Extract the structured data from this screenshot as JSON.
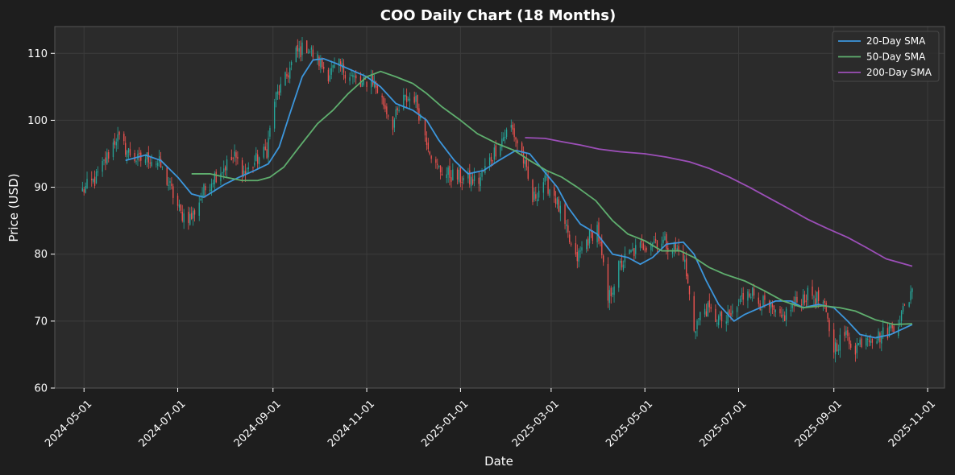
{
  "chart_data": {
    "type": "line",
    "title": "COO Daily Chart (18 Months)",
    "xlabel": "Date",
    "ylabel": "Price (USD)",
    "xlim": [
      "2024-04-12",
      "2025-11-12"
    ],
    "ylim": [
      60,
      114
    ],
    "x_ticks": [
      "2024-05-01",
      "2024-07-01",
      "2024-09-01",
      "2024-11-01",
      "2025-01-01",
      "2025-03-01",
      "2025-05-01",
      "2025-07-01",
      "2025-09-01",
      "2025-11-01"
    ],
    "y_ticks": [
      60,
      70,
      80,
      90,
      100,
      110
    ],
    "grid": true,
    "legend_position": "top-right",
    "colors": {
      "background": "#1e1e1e",
      "plot_background": "#2b2b2b",
      "up_candle": "#26a69a",
      "down_candle": "#ef5350",
      "sma20": "#3c96dc",
      "sma50": "#5fae6e",
      "sma200": "#9c4fb8"
    },
    "price_path": [
      [
        "2024-04-30",
        89.5
      ],
      [
        "2024-05-08",
        91
      ],
      [
        "2024-05-15",
        94
      ],
      [
        "2024-05-22",
        97.5
      ],
      [
        "2024-05-29",
        95.5
      ],
      [
        "2024-06-05",
        94
      ],
      [
        "2024-06-12",
        94.5
      ],
      [
        "2024-06-19",
        93.5
      ],
      [
        "2024-06-26",
        90
      ],
      [
        "2024-07-03",
        86
      ],
      [
        "2024-07-10",
        85.5
      ],
      [
        "2024-07-17",
        89
      ],
      [
        "2024-07-24",
        91.5
      ],
      [
        "2024-07-31",
        93
      ],
      [
        "2024-08-07",
        94.5
      ],
      [
        "2024-08-14",
        92
      ],
      [
        "2024-08-21",
        94
      ],
      [
        "2024-08-28",
        95.5
      ],
      [
        "2024-09-02",
        103
      ],
      [
        "2024-09-09",
        106
      ],
      [
        "2024-09-16",
        110
      ],
      [
        "2024-09-23",
        111
      ],
      [
        "2024-09-30",
        109
      ],
      [
        "2024-10-07",
        107
      ],
      [
        "2024-10-14",
        108
      ],
      [
        "2024-10-21",
        107
      ],
      [
        "2024-10-28",
        105
      ],
      [
        "2024-11-04",
        106.5
      ],
      [
        "2024-11-11",
        103
      ],
      [
        "2024-11-18",
        99.5
      ],
      [
        "2024-11-25",
        103
      ],
      [
        "2024-12-02",
        103.5
      ],
      [
        "2024-12-09",
        98
      ],
      [
        "2024-12-16",
        93
      ],
      [
        "2024-12-23",
        92
      ],
      [
        "2024-12-30",
        91.5
      ],
      [
        "2025-01-06",
        91
      ],
      [
        "2025-01-13",
        91
      ],
      [
        "2025-01-20",
        94
      ],
      [
        "2025-01-27",
        97
      ],
      [
        "2025-02-03",
        99
      ],
      [
        "2025-02-10",
        95
      ],
      [
        "2025-02-17",
        88
      ],
      [
        "2025-02-24",
        91
      ],
      [
        "2025-03-03",
        89
      ],
      [
        "2025-03-10",
        84
      ],
      [
        "2025-03-17",
        79
      ],
      [
        "2025-03-24",
        82
      ],
      [
        "2025-03-31",
        84
      ],
      [
        "2025-04-07",
        73
      ],
      [
        "2025-04-14",
        78
      ],
      [
        "2025-04-21",
        80
      ],
      [
        "2025-04-28",
        81
      ],
      [
        "2025-05-05",
        82
      ],
      [
        "2025-05-12",
        82
      ],
      [
        "2025-05-19",
        81
      ],
      [
        "2025-05-26",
        80
      ],
      [
        "2025-06-02",
        69
      ],
      [
        "2025-06-09",
        72
      ],
      [
        "2025-06-16",
        70.5
      ],
      [
        "2025-06-23",
        70
      ],
      [
        "2025-06-30",
        72
      ],
      [
        "2025-07-07",
        75
      ],
      [
        "2025-07-14",
        73
      ],
      [
        "2025-07-21",
        72
      ],
      [
        "2025-07-28",
        70
      ],
      [
        "2025-08-04",
        72
      ],
      [
        "2025-08-11",
        73.5
      ],
      [
        "2025-08-18",
        74
      ],
      [
        "2025-08-25",
        72.5
      ],
      [
        "2025-09-01",
        66
      ],
      [
        "2025-09-08",
        68
      ],
      [
        "2025-09-15",
        66
      ],
      [
        "2025-09-22",
        68
      ],
      [
        "2025-09-29",
        67.5
      ],
      [
        "2025-10-06",
        68.5
      ],
      [
        "2025-10-13",
        70
      ],
      [
        "2025-10-20",
        73.5
      ],
      [
        "2025-10-22",
        75.5
      ]
    ],
    "series": [
      {
        "name": "20-Day SMA",
        "points": [
          [
            "2024-05-28",
            94
          ],
          [
            "2024-06-10",
            94.8
          ],
          [
            "2024-06-20",
            94
          ],
          [
            "2024-07-01",
            91.5
          ],
          [
            "2024-07-10",
            89
          ],
          [
            "2024-07-18",
            88.5
          ],
          [
            "2024-07-25",
            89.5
          ],
          [
            "2024-08-01",
            90.5
          ],
          [
            "2024-08-10",
            91.5
          ],
          [
            "2024-08-20",
            92.5
          ],
          [
            "2024-08-29",
            93.5
          ],
          [
            "2024-09-05",
            96
          ],
          [
            "2024-09-12",
            101
          ],
          [
            "2024-09-20",
            106.5
          ],
          [
            "2024-09-27",
            109
          ],
          [
            "2024-10-04",
            109.2
          ],
          [
            "2024-10-12",
            108.5
          ],
          [
            "2024-10-22",
            107.5
          ],
          [
            "2024-11-01",
            106.5
          ],
          [
            "2024-11-10",
            105
          ],
          [
            "2024-11-20",
            102.5
          ],
          [
            "2024-12-01",
            101.5
          ],
          [
            "2024-12-10",
            100
          ],
          [
            "2024-12-18",
            97
          ],
          [
            "2024-12-28",
            94
          ],
          [
            "2025-01-06",
            92
          ],
          [
            "2025-01-16",
            92.5
          ],
          [
            "2025-01-26",
            94
          ],
          [
            "2025-02-06",
            95.5
          ],
          [
            "2025-02-15",
            95
          ],
          [
            "2025-02-24",
            92.5
          ],
          [
            "2025-03-05",
            90
          ],
          [
            "2025-03-12",
            87
          ],
          [
            "2025-03-20",
            84.5
          ],
          [
            "2025-03-31",
            83
          ],
          [
            "2025-04-10",
            80
          ],
          [
            "2025-04-20",
            79.5
          ],
          [
            "2025-04-28",
            78.5
          ],
          [
            "2025-05-06",
            79.5
          ],
          [
            "2025-05-15",
            81.5
          ],
          [
            "2025-05-26",
            81.8
          ],
          [
            "2025-06-02",
            80
          ],
          [
            "2025-06-10",
            76
          ],
          [
            "2025-06-18",
            72.5
          ],
          [
            "2025-06-28",
            70
          ],
          [
            "2025-07-05",
            71
          ],
          [
            "2025-07-15",
            72
          ],
          [
            "2025-07-25",
            73
          ],
          [
            "2025-08-04",
            73
          ],
          [
            "2025-08-12",
            72
          ],
          [
            "2025-08-22",
            72.5
          ],
          [
            "2025-09-01",
            72
          ],
          [
            "2025-09-10",
            70
          ],
          [
            "2025-09-18",
            68
          ],
          [
            "2025-09-28",
            67.5
          ],
          [
            "2025-10-08",
            68
          ],
          [
            "2025-10-22",
            69.5
          ]
        ]
      },
      {
        "name": "50-Day SMA",
        "points": [
          [
            "2024-07-10",
            92
          ],
          [
            "2024-07-22",
            92
          ],
          [
            "2024-08-01",
            91.5
          ],
          [
            "2024-08-12",
            91
          ],
          [
            "2024-08-22",
            91
          ],
          [
            "2024-08-30",
            91.5
          ],
          [
            "2024-09-08",
            93
          ],
          [
            "2024-09-18",
            96
          ],
          [
            "2024-09-30",
            99.5
          ],
          [
            "2024-10-10",
            101.5
          ],
          [
            "2024-10-20",
            104
          ],
          [
            "2024-11-01",
            106.5
          ],
          [
            "2024-11-10",
            107.3
          ],
          [
            "2024-11-20",
            106.5
          ],
          [
            "2024-12-01",
            105.5
          ],
          [
            "2024-12-10",
            104
          ],
          [
            "2024-12-20",
            102
          ],
          [
            "2025-01-01",
            100
          ],
          [
            "2025-01-12",
            98
          ],
          [
            "2025-01-25",
            96.5
          ],
          [
            "2025-02-05",
            95.5
          ],
          [
            "2025-02-15",
            94
          ],
          [
            "2025-02-26",
            92.5
          ],
          [
            "2025-03-08",
            91.5
          ],
          [
            "2025-03-18",
            90
          ],
          [
            "2025-03-30",
            88
          ],
          [
            "2025-04-10",
            85
          ],
          [
            "2025-04-20",
            83
          ],
          [
            "2025-05-01",
            82
          ],
          [
            "2025-05-12",
            80.5
          ],
          [
            "2025-05-24",
            80.5
          ],
          [
            "2025-06-02",
            79.5
          ],
          [
            "2025-06-12",
            78
          ],
          [
            "2025-06-22",
            77
          ],
          [
            "2025-07-05",
            76
          ],
          [
            "2025-07-18",
            74.5
          ],
          [
            "2025-07-30",
            73
          ],
          [
            "2025-08-12",
            72
          ],
          [
            "2025-08-25",
            72.3
          ],
          [
            "2025-09-05",
            72
          ],
          [
            "2025-09-15",
            71.5
          ],
          [
            "2025-09-28",
            70.2
          ],
          [
            "2025-10-10",
            69.5
          ],
          [
            "2025-10-22",
            69.6
          ]
        ]
      },
      {
        "name": "200-Day SMA",
        "points": [
          [
            "2025-02-12",
            97.4
          ],
          [
            "2025-02-25",
            97.3
          ],
          [
            "2025-03-08",
            96.8
          ],
          [
            "2025-03-20",
            96.3
          ],
          [
            "2025-04-01",
            95.7
          ],
          [
            "2025-04-15",
            95.3
          ],
          [
            "2025-05-01",
            95
          ],
          [
            "2025-05-15",
            94.5
          ],
          [
            "2025-05-30",
            93.8
          ],
          [
            "2025-06-12",
            92.8
          ],
          [
            "2025-06-25",
            91.5
          ],
          [
            "2025-07-08",
            90
          ],
          [
            "2025-07-20",
            88.5
          ],
          [
            "2025-08-01",
            87
          ],
          [
            "2025-08-15",
            85.2
          ],
          [
            "2025-08-28",
            83.8
          ],
          [
            "2025-09-10",
            82.5
          ],
          [
            "2025-09-22",
            81
          ],
          [
            "2025-10-05",
            79.3
          ],
          [
            "2025-10-22",
            78.2
          ]
        ]
      }
    ]
  }
}
